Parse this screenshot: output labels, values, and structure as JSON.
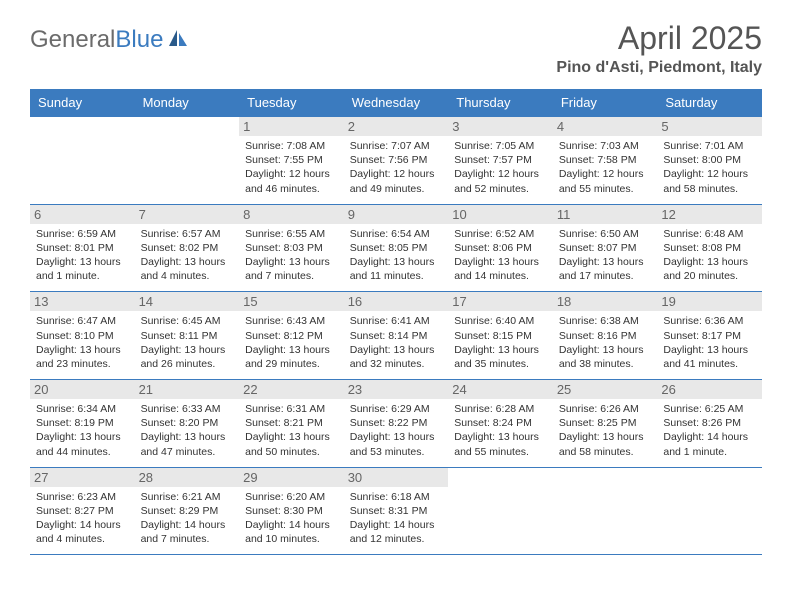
{
  "logo": {
    "text1": "General",
    "text2": "Blue"
  },
  "title": "April 2025",
  "location": "Pino d'Asti, Piedmont, Italy",
  "colors": {
    "header_bg": "#3b7bbf",
    "header_text": "#ffffff",
    "day_num_bg": "#e8e8e8",
    "day_num_text": "#666666",
    "border": "#3b7bbf",
    "body_text": "#333333",
    "logo_gray": "#6b6b6b",
    "logo_blue": "#3b7bbf"
  },
  "day_headers": [
    "Sunday",
    "Monday",
    "Tuesday",
    "Wednesday",
    "Thursday",
    "Friday",
    "Saturday"
  ],
  "weeks": [
    [
      {
        "n": "",
        "sr": "",
        "ss": "",
        "dl": ""
      },
      {
        "n": "",
        "sr": "",
        "ss": "",
        "dl": ""
      },
      {
        "n": "1",
        "sr": "Sunrise: 7:08 AM",
        "ss": "Sunset: 7:55 PM",
        "dl": "Daylight: 12 hours and 46 minutes."
      },
      {
        "n": "2",
        "sr": "Sunrise: 7:07 AM",
        "ss": "Sunset: 7:56 PM",
        "dl": "Daylight: 12 hours and 49 minutes."
      },
      {
        "n": "3",
        "sr": "Sunrise: 7:05 AM",
        "ss": "Sunset: 7:57 PM",
        "dl": "Daylight: 12 hours and 52 minutes."
      },
      {
        "n": "4",
        "sr": "Sunrise: 7:03 AM",
        "ss": "Sunset: 7:58 PM",
        "dl": "Daylight: 12 hours and 55 minutes."
      },
      {
        "n": "5",
        "sr": "Sunrise: 7:01 AM",
        "ss": "Sunset: 8:00 PM",
        "dl": "Daylight: 12 hours and 58 minutes."
      }
    ],
    [
      {
        "n": "6",
        "sr": "Sunrise: 6:59 AM",
        "ss": "Sunset: 8:01 PM",
        "dl": "Daylight: 13 hours and 1 minute."
      },
      {
        "n": "7",
        "sr": "Sunrise: 6:57 AM",
        "ss": "Sunset: 8:02 PM",
        "dl": "Daylight: 13 hours and 4 minutes."
      },
      {
        "n": "8",
        "sr": "Sunrise: 6:55 AM",
        "ss": "Sunset: 8:03 PM",
        "dl": "Daylight: 13 hours and 7 minutes."
      },
      {
        "n": "9",
        "sr": "Sunrise: 6:54 AM",
        "ss": "Sunset: 8:05 PM",
        "dl": "Daylight: 13 hours and 11 minutes."
      },
      {
        "n": "10",
        "sr": "Sunrise: 6:52 AM",
        "ss": "Sunset: 8:06 PM",
        "dl": "Daylight: 13 hours and 14 minutes."
      },
      {
        "n": "11",
        "sr": "Sunrise: 6:50 AM",
        "ss": "Sunset: 8:07 PM",
        "dl": "Daylight: 13 hours and 17 minutes."
      },
      {
        "n": "12",
        "sr": "Sunrise: 6:48 AM",
        "ss": "Sunset: 8:08 PM",
        "dl": "Daylight: 13 hours and 20 minutes."
      }
    ],
    [
      {
        "n": "13",
        "sr": "Sunrise: 6:47 AM",
        "ss": "Sunset: 8:10 PM",
        "dl": "Daylight: 13 hours and 23 minutes."
      },
      {
        "n": "14",
        "sr": "Sunrise: 6:45 AM",
        "ss": "Sunset: 8:11 PM",
        "dl": "Daylight: 13 hours and 26 minutes."
      },
      {
        "n": "15",
        "sr": "Sunrise: 6:43 AM",
        "ss": "Sunset: 8:12 PM",
        "dl": "Daylight: 13 hours and 29 minutes."
      },
      {
        "n": "16",
        "sr": "Sunrise: 6:41 AM",
        "ss": "Sunset: 8:14 PM",
        "dl": "Daylight: 13 hours and 32 minutes."
      },
      {
        "n": "17",
        "sr": "Sunrise: 6:40 AM",
        "ss": "Sunset: 8:15 PM",
        "dl": "Daylight: 13 hours and 35 minutes."
      },
      {
        "n": "18",
        "sr": "Sunrise: 6:38 AM",
        "ss": "Sunset: 8:16 PM",
        "dl": "Daylight: 13 hours and 38 minutes."
      },
      {
        "n": "19",
        "sr": "Sunrise: 6:36 AM",
        "ss": "Sunset: 8:17 PM",
        "dl": "Daylight: 13 hours and 41 minutes."
      }
    ],
    [
      {
        "n": "20",
        "sr": "Sunrise: 6:34 AM",
        "ss": "Sunset: 8:19 PM",
        "dl": "Daylight: 13 hours and 44 minutes."
      },
      {
        "n": "21",
        "sr": "Sunrise: 6:33 AM",
        "ss": "Sunset: 8:20 PM",
        "dl": "Daylight: 13 hours and 47 minutes."
      },
      {
        "n": "22",
        "sr": "Sunrise: 6:31 AM",
        "ss": "Sunset: 8:21 PM",
        "dl": "Daylight: 13 hours and 50 minutes."
      },
      {
        "n": "23",
        "sr": "Sunrise: 6:29 AM",
        "ss": "Sunset: 8:22 PM",
        "dl": "Daylight: 13 hours and 53 minutes."
      },
      {
        "n": "24",
        "sr": "Sunrise: 6:28 AM",
        "ss": "Sunset: 8:24 PM",
        "dl": "Daylight: 13 hours and 55 minutes."
      },
      {
        "n": "25",
        "sr": "Sunrise: 6:26 AM",
        "ss": "Sunset: 8:25 PM",
        "dl": "Daylight: 13 hours and 58 minutes."
      },
      {
        "n": "26",
        "sr": "Sunrise: 6:25 AM",
        "ss": "Sunset: 8:26 PM",
        "dl": "Daylight: 14 hours and 1 minute."
      }
    ],
    [
      {
        "n": "27",
        "sr": "Sunrise: 6:23 AM",
        "ss": "Sunset: 8:27 PM",
        "dl": "Daylight: 14 hours and 4 minutes."
      },
      {
        "n": "28",
        "sr": "Sunrise: 6:21 AM",
        "ss": "Sunset: 8:29 PM",
        "dl": "Daylight: 14 hours and 7 minutes."
      },
      {
        "n": "29",
        "sr": "Sunrise: 6:20 AM",
        "ss": "Sunset: 8:30 PM",
        "dl": "Daylight: 14 hours and 10 minutes."
      },
      {
        "n": "30",
        "sr": "Sunrise: 6:18 AM",
        "ss": "Sunset: 8:31 PM",
        "dl": "Daylight: 14 hours and 12 minutes."
      },
      {
        "n": "",
        "sr": "",
        "ss": "",
        "dl": ""
      },
      {
        "n": "",
        "sr": "",
        "ss": "",
        "dl": ""
      },
      {
        "n": "",
        "sr": "",
        "ss": "",
        "dl": ""
      }
    ]
  ]
}
